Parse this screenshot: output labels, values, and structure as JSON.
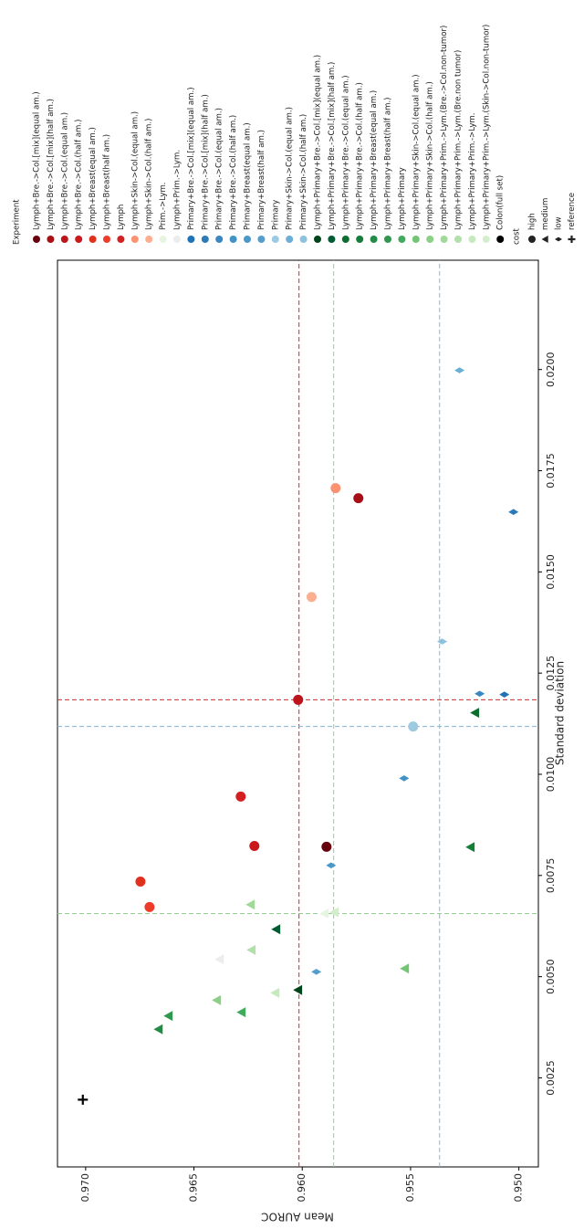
{
  "chart_data": {
    "type": "scatter",
    "xlabel": "Standard deviation",
    "ylabel": "Mean AUROC",
    "xlim": [
      0.0003,
      0.0227
    ],
    "ylim": [
      0.9491,
      0.9713
    ],
    "xticks": [
      0.0025,
      {
        "value": 0.005,
        "label": "0.0050"
      },
      0.0075,
      {
        "value": 0.01,
        "label": "0.0100"
      },
      0.0125,
      {
        "value": 0.015,
        "label": "0.0150"
      },
      0.0175,
      {
        "value": 0.02,
        "label": "0.0200"
      }
    ],
    "yticks": [
      {
        "value": 0.95,
        "label": "0.950"
      },
      0.955,
      {
        "value": 0.96,
        "label": "0.960"
      },
      0.965,
      {
        "value": 0.97,
        "label": "0.970"
      }
    ],
    "legend_title": "Experiment",
    "series": [
      {
        "name": "Lymph+Bre.->Col.[mix](equal am.)",
        "color": "#67000d",
        "marker": "circle",
        "x": [
          0.00821
        ],
        "values": [
          0.95888
        ]
      },
      {
        "name": "Lymph+Bre.->Col.[mix](half am.)",
        "color": "#a50f15",
        "marker": "circle",
        "x": [
          0.01682
        ],
        "values": [
          0.95741
        ]
      },
      {
        "name": "Lymph+Bre.->Col.(equal am.)",
        "color": "#bc141a",
        "marker": "circle",
        "x": [
          0.01184
        ],
        "values": [
          0.96019
        ]
      },
      {
        "name": "Lymph+Bre.->Col.(half am.)",
        "color": "#cb181d",
        "marker": "circle",
        "x": [
          0.00823
        ],
        "values": [
          0.96221
        ]
      },
      {
        "name": "Lymph+Breast(equal am.)",
        "color": "#e0301e",
        "marker": "circle",
        "x": [
          0.00735
        ],
        "values": [
          0.96747
        ]
      },
      {
        "name": "Lymph+Breast(half am.)",
        "color": "#ef3b2c",
        "marker": "circle",
        "x": [
          0.00672
        ],
        "values": [
          0.96705
        ]
      },
      {
        "name": "Lymph",
        "color": "#d42020",
        "marker": "circle",
        "x": [
          0.00945
        ],
        "values": [
          0.96284
        ]
      },
      {
        "name": "Lymph+Skin->Col.(equal am.)",
        "color": "#fc9272",
        "marker": "circle",
        "x": [
          0.01707
        ],
        "values": [
          0.95846
        ]
      },
      {
        "name": "Lymph+Skin->Col.(half am.)",
        "color": "#fcae91",
        "marker": "circle",
        "x": [
          0.01438
        ],
        "values": [
          0.95957
        ]
      },
      {
        "name": "Prim.->Lym.",
        "color": "#e5f5e0",
        "marker": "triangle",
        "x": [
          0.00656
        ],
        "values": [
          0.95897
        ]
      },
      {
        "name": "Lymph+Prim.->Lym.",
        "color": "#ececec",
        "marker": "triangle",
        "x": [
          0.00543
        ],
        "values": [
          0.96381
        ]
      },
      {
        "name": "Primary+Bre.->Col.[mix](equal am.)",
        "color": "#2171b5",
        "marker": "diamond",
        "x": [
          0.01197
        ],
        "values": [
          0.95067
        ]
      },
      {
        "name": "Primary+Bre.->Col.[mix](half am.)",
        "color": "#2b7bba",
        "marker": "diamond",
        "x": [
          0.01648
        ],
        "values": [
          0.95025
        ]
      },
      {
        "name": "Primary+Bre.->Col.(equal am.)",
        "color": "#3a87c2",
        "marker": "diamond",
        "x": [
          0.01199
        ],
        "values": [
          0.95181
        ]
      },
      {
        "name": "Primary+Bre.->Col.(half am.)",
        "color": "#4292c6",
        "marker": "diamond",
        "x": [
          0.0099
        ],
        "values": [
          0.9553
        ]
      },
      {
        "name": "Primary+Breast(equal am.)",
        "color": "#4a98c9",
        "marker": "diamond",
        "x": [
          0.00775
        ],
        "values": [
          0.95867
        ]
      },
      {
        "name": "Primary+Breast(half am.)",
        "color": "#539ecd",
        "marker": "diamond",
        "x": [
          0.00512
        ],
        "values": [
          0.95935
        ]
      },
      {
        "name": "Primary",
        "color": "#9ecae1",
        "marker": "circle",
        "x": [
          0.01118
        ],
        "values": [
          0.95488
        ]
      },
      {
        "name": "Primary+Skin->Col.(equal am.)",
        "color": "#6baed6",
        "marker": "diamond",
        "x": [
          0.01998
        ],
        "values": [
          0.95274
        ]
      },
      {
        "name": "Primary+Skin->Col.(half am.)",
        "color": "#8dc1dd",
        "marker": "diamond",
        "x": [
          0.01328
        ],
        "values": [
          0.95354
        ]
      },
      {
        "name": "Lymph+Primary+Bre.->Col.[mix](equal am.)",
        "color": "#00441b",
        "marker": "triangle",
        "x": [
          0.00467
        ],
        "values": [
          0.96019
        ]
      },
      {
        "name": "Lymph+Primary+Bre.->Col.[mix](half am.)",
        "color": "#005a32",
        "marker": "triangle",
        "x": [
          0.00617
        ],
        "values": [
          0.9612
        ]
      },
      {
        "name": "Lymph+Primary+Bre.->Col.(equal am.)",
        "color": "#0b6e2e",
        "marker": "triangle",
        "x": [
          0.01152
        ],
        "values": [
          0.95202
        ]
      },
      {
        "name": "Lymph+Primary+Bre.->Col.(half am.)",
        "color": "#137e3a",
        "marker": "triangle",
        "x": [
          0.0082
        ],
        "values": [
          0.95223
        ]
      },
      {
        "name": "Lymph+Primary+Breast(equal am.)",
        "color": "#238b45",
        "marker": "triangle",
        "x": [
          0.0037
        ],
        "values": [
          0.96663
        ]
      },
      {
        "name": "Lymph+Primary+Breast(half am.)",
        "color": "#2f974e",
        "marker": "triangle",
        "x": [
          0.00403
        ],
        "values": [
          0.96617
        ]
      },
      {
        "name": "Lymph+Primary",
        "color": "#41ab5d",
        "marker": "triangle",
        "x": [
          0.00412
        ],
        "values": [
          0.9628
        ]
      },
      {
        "name": "Lymph+Primary+Skin->Col.(equal am.)",
        "color": "#74c476",
        "marker": "triangle",
        "x": [
          0.0052
        ],
        "values": [
          0.95526
        ]
      },
      {
        "name": "Lymph+Primary+Skin->Col.(half am.)",
        "color": "#8ccf87",
        "marker": "triangle",
        "x": [
          0.00442
        ],
        "values": [
          0.96394
        ]
      },
      {
        "name": "Lymph+Primary+Prim.->Lym.(Bre.->Col.non-tumor)",
        "color": "#a1d99b",
        "marker": "triangle",
        "x": [
          0.00678
        ],
        "values": [
          0.96238
        ]
      },
      {
        "name": "Lymph+Primary+Prim.->Lym.(Bre.non tumor)",
        "color": "#b2e0ab",
        "marker": "triangle",
        "x": [
          0.00566
        ],
        "values": [
          0.96234
        ]
      },
      {
        "name": "Lymph+Primary+Prim.->Lym.",
        "color": "#c7e9c0",
        "marker": "triangle",
        "x": [
          0.0046
        ],
        "values": [
          0.96124
        ]
      },
      {
        "name": "Lymph+Primary+Prim.->Lym.(Skin->Col.non-tumor)",
        "color": "#d4eecd",
        "marker": "triangle",
        "x": [
          0.00659
        ],
        "values": [
          0.95851
        ]
      },
      {
        "name": "Colon(full set)",
        "color": "#000000",
        "marker": "plus",
        "x": [
          0.00196
        ],
        "values": [
          0.97013
        ]
      }
    ],
    "cost_legend": {
      "title": "cost",
      "items": [
        {
          "label": "high",
          "marker": "circle"
        },
        {
          "label": "medium",
          "marker": "triangle"
        },
        {
          "label": "low",
          "marker": "diamond"
        },
        {
          "label": "reference",
          "marker": "plus"
        }
      ]
    },
    "mean_lines": [
      {
        "color": "#d62728",
        "x": 0.01184,
        "y": 0.96015
      },
      {
        "color": "#8fd18a",
        "x": 0.00656,
        "y": 0.95855
      },
      {
        "color": "#7ab8e0",
        "x": 0.01118,
        "y": 0.95366
      }
    ]
  }
}
